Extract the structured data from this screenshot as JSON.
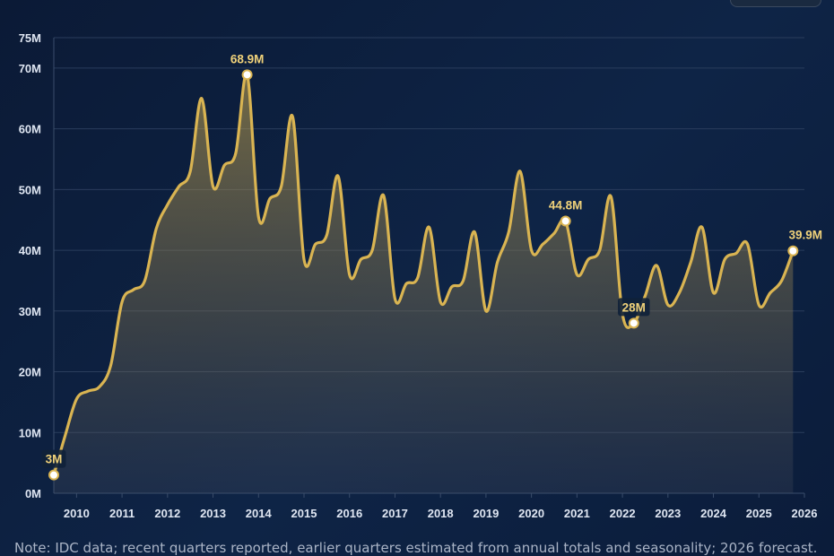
{
  "chart_data": {
    "type": "area",
    "ylim": [
      0,
      75
    ],
    "y_ticks": [
      {
        "value": 0,
        "label": "0M"
      },
      {
        "value": 10,
        "label": "10M"
      },
      {
        "value": 20,
        "label": "20M"
      },
      {
        "value": 30,
        "label": "30M"
      },
      {
        "value": 40,
        "label": "40M"
      },
      {
        "value": 50,
        "label": "50M"
      },
      {
        "value": 60,
        "label": "60M"
      },
      {
        "value": 70,
        "label": "70M"
      },
      {
        "value": 75,
        "label": "75M"
      }
    ],
    "x_ticks": [
      "2010",
      "2011",
      "2012",
      "2013",
      "2014",
      "2015",
      "2016",
      "2017",
      "2018",
      "2019",
      "2020",
      "2021",
      "2022",
      "2023",
      "2024",
      "2025",
      "2026"
    ],
    "x_range": [
      2009.5,
      2026.0
    ],
    "unit": "M",
    "series": [
      {
        "color": "#d9b452",
        "points": [
          [
            2009.5,
            3.0
          ],
          [
            2009.75,
            9.5
          ],
          [
            2010.0,
            15.5
          ],
          [
            2010.25,
            16.8
          ],
          [
            2010.5,
            17.5
          ],
          [
            2010.75,
            21.0
          ],
          [
            2011.0,
            31.5
          ],
          [
            2011.25,
            33.5
          ],
          [
            2011.5,
            35.0
          ],
          [
            2011.75,
            43.5
          ],
          [
            2012.0,
            47.5
          ],
          [
            2012.25,
            50.5
          ],
          [
            2012.5,
            53.0
          ],
          [
            2012.75,
            65.0
          ],
          [
            2013.0,
            50.5
          ],
          [
            2013.25,
            54.0
          ],
          [
            2013.5,
            56.0
          ],
          [
            2013.75,
            68.9
          ],
          [
            2014.0,
            45.5
          ],
          [
            2014.25,
            48.5
          ],
          [
            2014.5,
            50.5
          ],
          [
            2014.75,
            62.0
          ],
          [
            2015.0,
            38.5
          ],
          [
            2015.25,
            41.0
          ],
          [
            2015.5,
            42.5
          ],
          [
            2015.75,
            52.2
          ],
          [
            2016.0,
            36.0
          ],
          [
            2016.25,
            38.5
          ],
          [
            2016.5,
            40.0
          ],
          [
            2016.75,
            49.0
          ],
          [
            2017.0,
            32.0
          ],
          [
            2017.25,
            34.5
          ],
          [
            2017.5,
            35.5
          ],
          [
            2017.75,
            43.8
          ],
          [
            2018.0,
            31.5
          ],
          [
            2018.25,
            34.0
          ],
          [
            2018.5,
            35.0
          ],
          [
            2018.75,
            43.0
          ],
          [
            2019.0,
            30.0
          ],
          [
            2019.25,
            38.0
          ],
          [
            2019.5,
            43.0
          ],
          [
            2019.75,
            53.0
          ],
          [
            2020.0,
            40.0
          ],
          [
            2020.25,
            41.0
          ],
          [
            2020.5,
            42.8
          ],
          [
            2020.75,
            44.8
          ],
          [
            2021.0,
            36.0
          ],
          [
            2021.25,
            38.5
          ],
          [
            2021.5,
            40.0
          ],
          [
            2021.75,
            48.8
          ],
          [
            2022.0,
            29.5
          ],
          [
            2022.25,
            28.0
          ],
          [
            2022.5,
            32.5
          ],
          [
            2022.75,
            37.5
          ],
          [
            2023.0,
            31.0
          ],
          [
            2023.25,
            33.0
          ],
          [
            2023.5,
            38.0
          ],
          [
            2023.75,
            43.8
          ],
          [
            2024.0,
            33.0
          ],
          [
            2024.25,
            38.5
          ],
          [
            2024.5,
            39.5
          ],
          [
            2024.75,
            41.0
          ],
          [
            2025.0,
            31.0
          ],
          [
            2025.25,
            33.0
          ],
          [
            2025.5,
            35.0
          ],
          [
            2025.75,
            39.9
          ]
        ]
      }
    ],
    "annotations": [
      {
        "x": 2009.5,
        "y": 3.0,
        "label": "3M",
        "boxed": true
      },
      {
        "x": 2013.75,
        "y": 68.9,
        "label": "68.9M",
        "boxed": false
      },
      {
        "x": 2020.75,
        "y": 44.8,
        "label": "44.8M",
        "boxed": false
      },
      {
        "x": 2022.25,
        "y": 28.0,
        "label": "28M",
        "boxed": true
      },
      {
        "x": 2025.75,
        "y": 39.9,
        "label": "39.9M",
        "boxed": false
      }
    ],
    "grid": true,
    "legend": "none",
    "title": "",
    "xlabel": "",
    "ylabel": ""
  },
  "note": "Note: IDC data; recent quarters reported, earlier quarters estimated from annual totals and seasonality; 2026 forecast."
}
